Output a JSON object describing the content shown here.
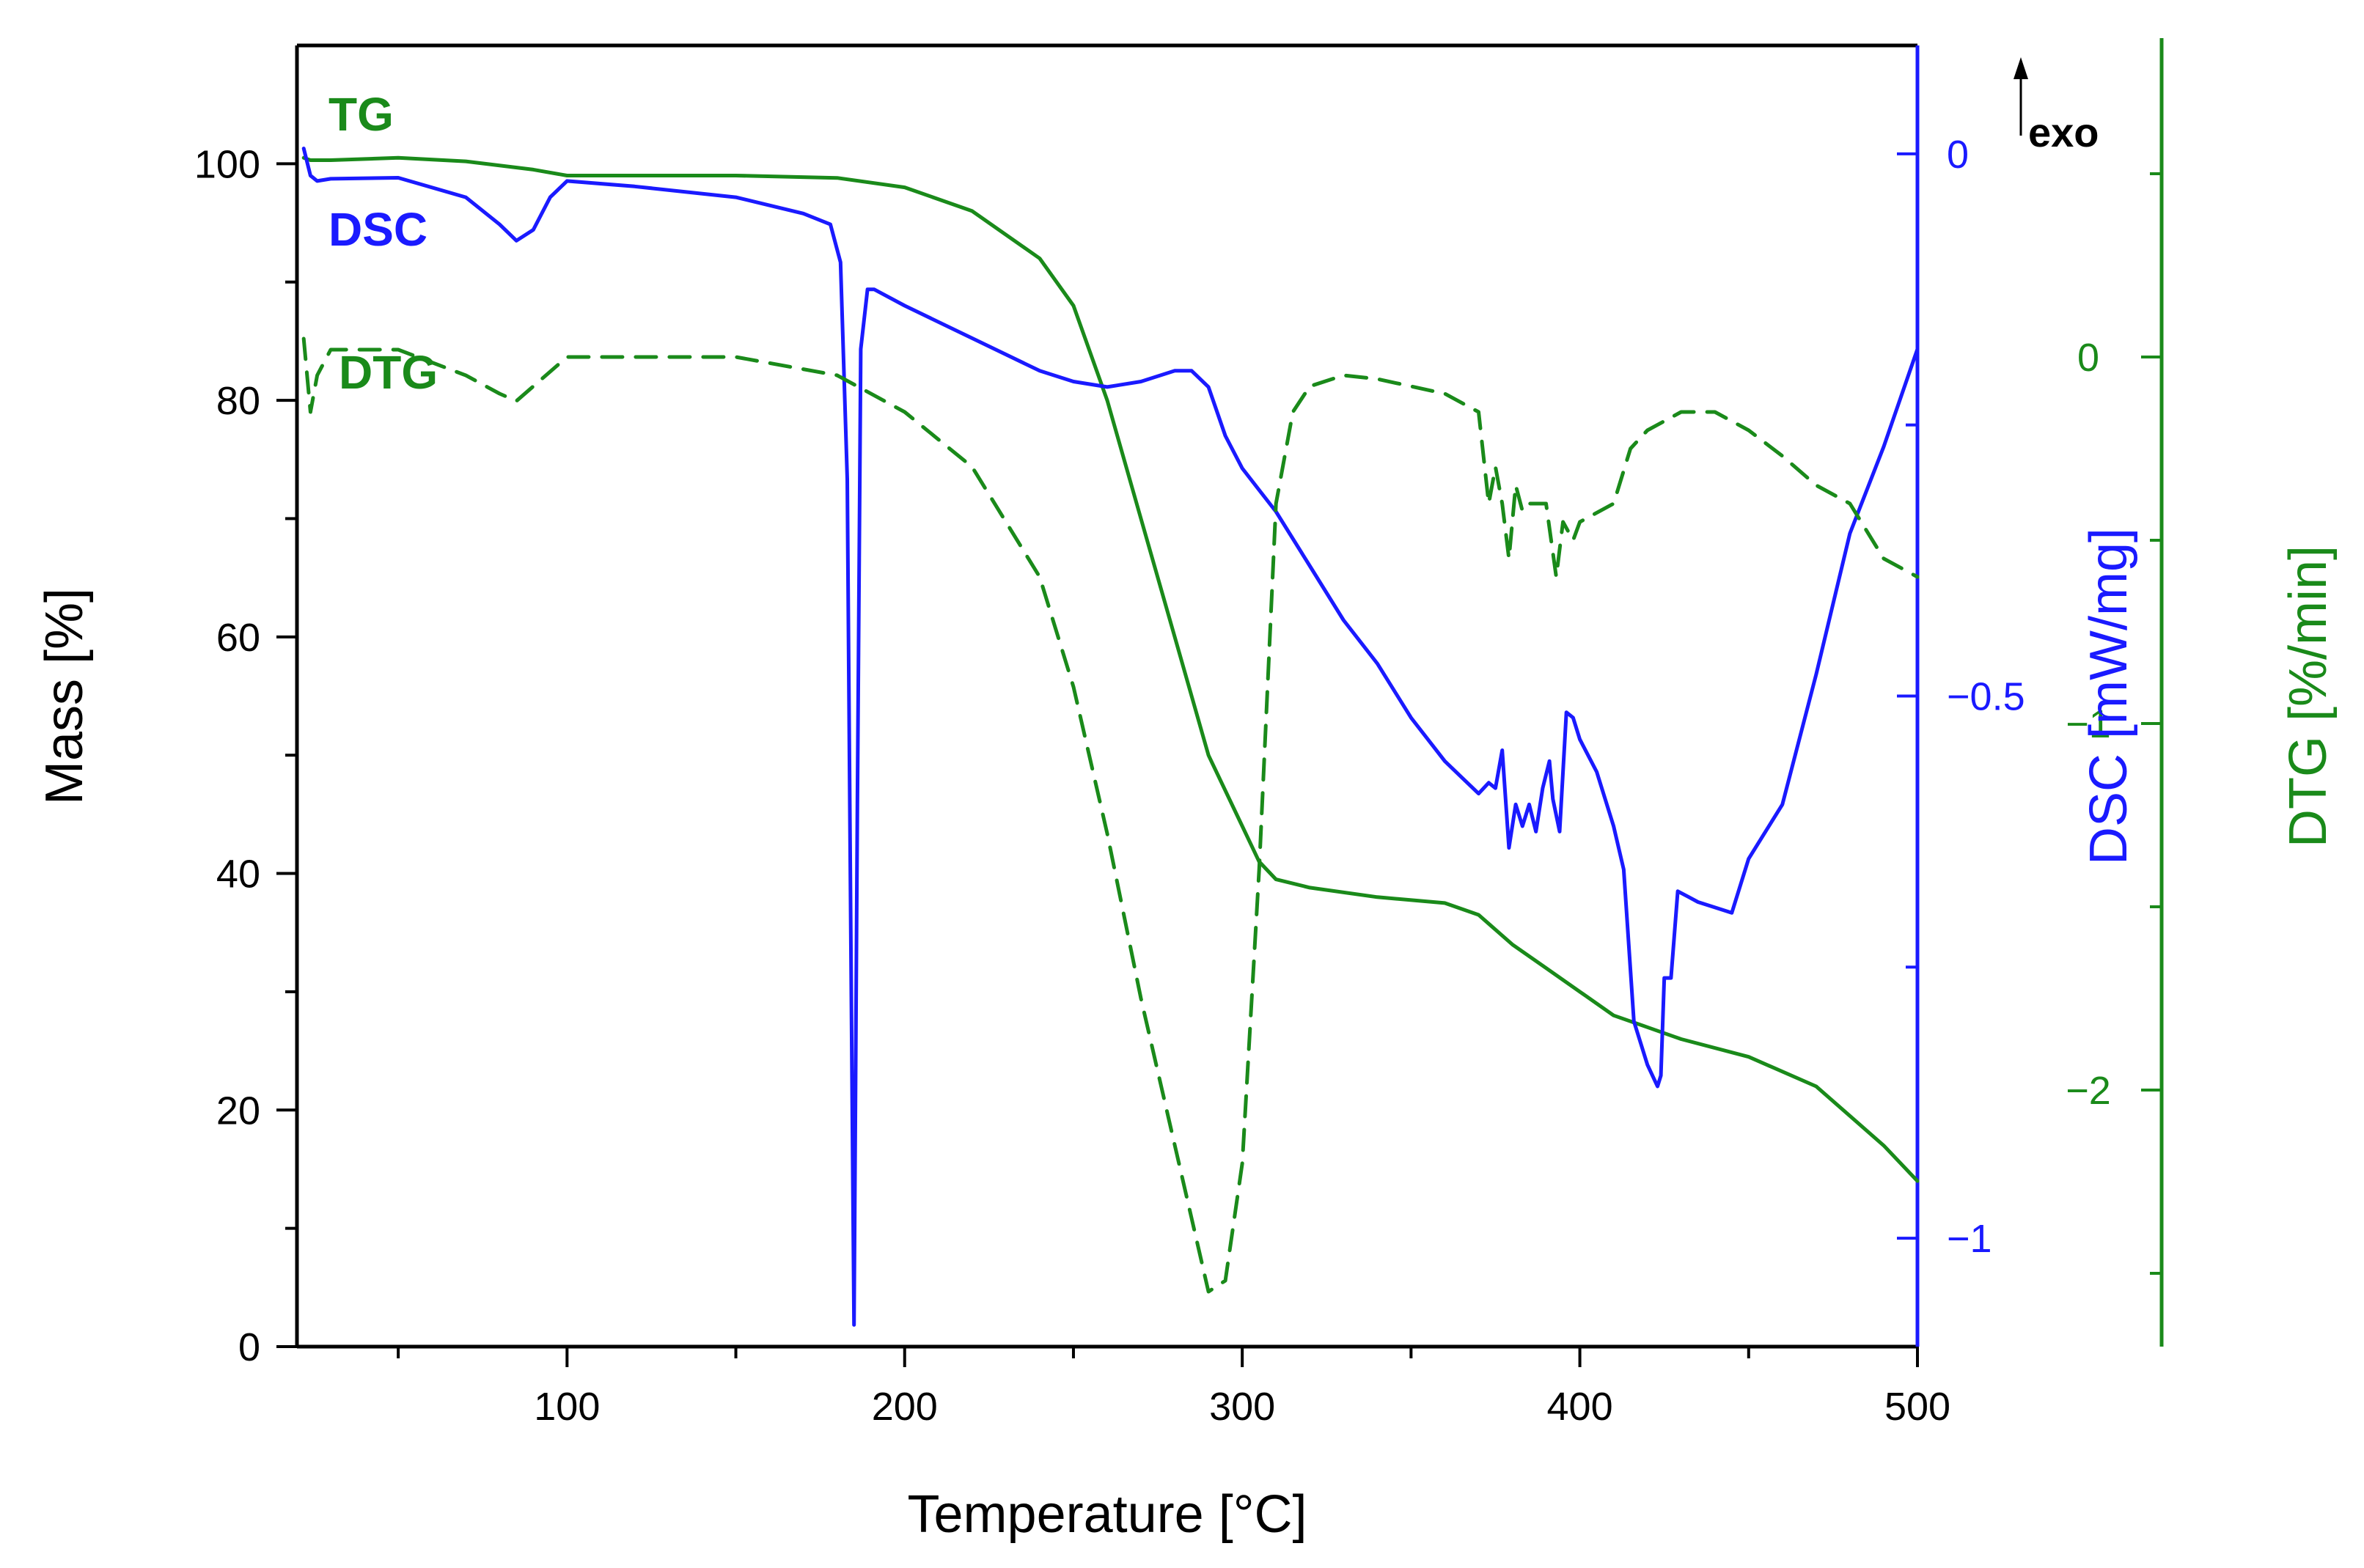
{
  "chart_data": {
    "type": "line",
    "xlabel": "Temperature [°C]",
    "ylabel": "Mass [%]",
    "y2label": "DSC [mW/mg]",
    "y3label": "DTG [%/min]",
    "xlim": [
      20,
      500
    ],
    "ylim": [
      0,
      110
    ],
    "y2lim": [
      -1.1,
      0.1
    ],
    "y3lim": [
      -2.7,
      0.85
    ],
    "x_ticks": [
      100,
      200,
      300,
      400,
      500
    ],
    "y_ticks": [
      0,
      20,
      40,
      60,
      80,
      100
    ],
    "y2_ticks": [
      0,
      -0.5,
      -1
    ],
    "y2_tick_labels": [
      "0",
      "−0.5",
      "−1"
    ],
    "y3_ticks": [
      0,
      -1,
      -2
    ],
    "y3_tick_labels": [
      "0",
      "−1",
      "−2"
    ],
    "exo_label": "exo",
    "colors": {
      "tg": "#1a8a1a",
      "dsc": "#1a1aff",
      "dtg": "#1a8a1a",
      "axis": "#000000"
    },
    "series": [
      {
        "name": "TG",
        "axis": "mass",
        "style": "solid",
        "x": [
          22,
          24,
          30,
          50,
          70,
          90,
          100,
          150,
          180,
          200,
          220,
          240,
          250,
          260,
          270,
          280,
          290,
          300,
          305,
          310,
          320,
          340,
          360,
          370,
          380,
          390,
          400,
          410,
          420,
          430,
          450,
          470,
          490,
          500
        ],
        "y": [
          100.5,
          100.3,
          100.3,
          100.5,
          100.2,
          99.5,
          99,
          99,
          98.8,
          98,
          96,
          92,
          88,
          80,
          70,
          60,
          50,
          44,
          41,
          39.5,
          38.8,
          38,
          37.5,
          36.5,
          34,
          32,
          30,
          28,
          27,
          26,
          24.5,
          22,
          17,
          14
        ]
      },
      {
        "name": "DSC",
        "axis": "dsc",
        "style": "solid",
        "x": [
          22,
          24,
          26,
          30,
          50,
          70,
          80,
          85,
          90,
          95,
          100,
          120,
          150,
          170,
          178,
          181,
          183,
          184,
          185,
          186,
          187,
          189,
          191,
          200,
          220,
          240,
          250,
          260,
          270,
          280,
          285,
          290,
          295,
          300,
          305,
          310,
          320,
          330,
          340,
          350,
          360,
          365,
          370,
          373,
          375,
          377,
          379,
          381,
          383,
          385,
          387,
          389,
          391,
          392,
          394,
          396,
          398,
          400,
          405,
          410,
          413,
          416,
          420,
          423,
          424,
          425,
          427,
          429,
          432,
          435,
          440,
          445,
          450,
          460,
          470,
          480,
          490,
          500
        ],
        "y": [
          0.005,
          -0.02,
          -0.025,
          -0.023,
          -0.022,
          -0.04,
          -0.065,
          -0.08,
          -0.07,
          -0.04,
          -0.025,
          -0.03,
          -0.04,
          -0.055,
          -0.065,
          -0.1,
          -0.3,
          -0.7,
          -1.08,
          -0.6,
          -0.18,
          -0.125,
          -0.125,
          -0.14,
          -0.17,
          -0.2,
          -0.21,
          -0.215,
          -0.21,
          -0.2,
          -0.2,
          -0.215,
          -0.26,
          -0.29,
          -0.31,
          -0.33,
          -0.38,
          -0.43,
          -0.47,
          -0.52,
          -0.56,
          -0.575,
          -0.59,
          -0.58,
          -0.585,
          -0.55,
          -0.64,
          -0.6,
          -0.62,
          -0.6,
          -0.625,
          -0.585,
          -0.56,
          -0.595,
          -0.625,
          -0.515,
          -0.52,
          -0.54,
          -0.57,
          -0.62,
          -0.66,
          -0.8,
          -0.84,
          -0.86,
          -0.85,
          -0.76,
          -0.76,
          -0.68,
          -0.685,
          -0.69,
          -0.695,
          -0.7,
          -0.65,
          -0.6,
          -0.48,
          -0.35,
          -0.27,
          -0.18
        ]
      },
      {
        "name": "DTG",
        "axis": "dtg",
        "style": "dashed",
        "x": [
          22,
          24,
          26,
          30,
          50,
          70,
          80,
          85,
          90,
          100,
          150,
          180,
          200,
          220,
          240,
          250,
          260,
          270,
          280,
          285,
          290,
          295,
          300,
          305,
          310,
          315,
          320,
          330,
          340,
          360,
          370,
          373,
          375,
          377,
          379,
          381,
          383,
          385,
          390,
          393,
          395,
          398,
          400,
          410,
          415,
          420,
          430,
          440,
          450,
          460,
          470,
          480,
          490,
          500
        ],
        "y": [
          0.05,
          -0.15,
          -0.05,
          0.02,
          0.02,
          -0.05,
          -0.1,
          -0.12,
          -0.08,
          0,
          0,
          -0.05,
          -0.15,
          -0.3,
          -0.6,
          -0.9,
          -1.3,
          -1.75,
          -2.15,
          -2.35,
          -2.55,
          -2.52,
          -2.2,
          -1.4,
          -0.4,
          -0.15,
          -0.08,
          -0.05,
          -0.06,
          -0.1,
          -0.15,
          -0.4,
          -0.3,
          -0.4,
          -0.55,
          -0.35,
          -0.42,
          -0.4,
          -0.4,
          -0.6,
          -0.45,
          -0.5,
          -0.45,
          -0.4,
          -0.25,
          -0.2,
          -0.15,
          -0.15,
          -0.2,
          -0.27,
          -0.35,
          -0.4,
          -0.55,
          -0.6
        ]
      }
    ],
    "labels": {
      "tg": "TG",
      "dsc": "DSC",
      "dtg": "DTG"
    }
  }
}
